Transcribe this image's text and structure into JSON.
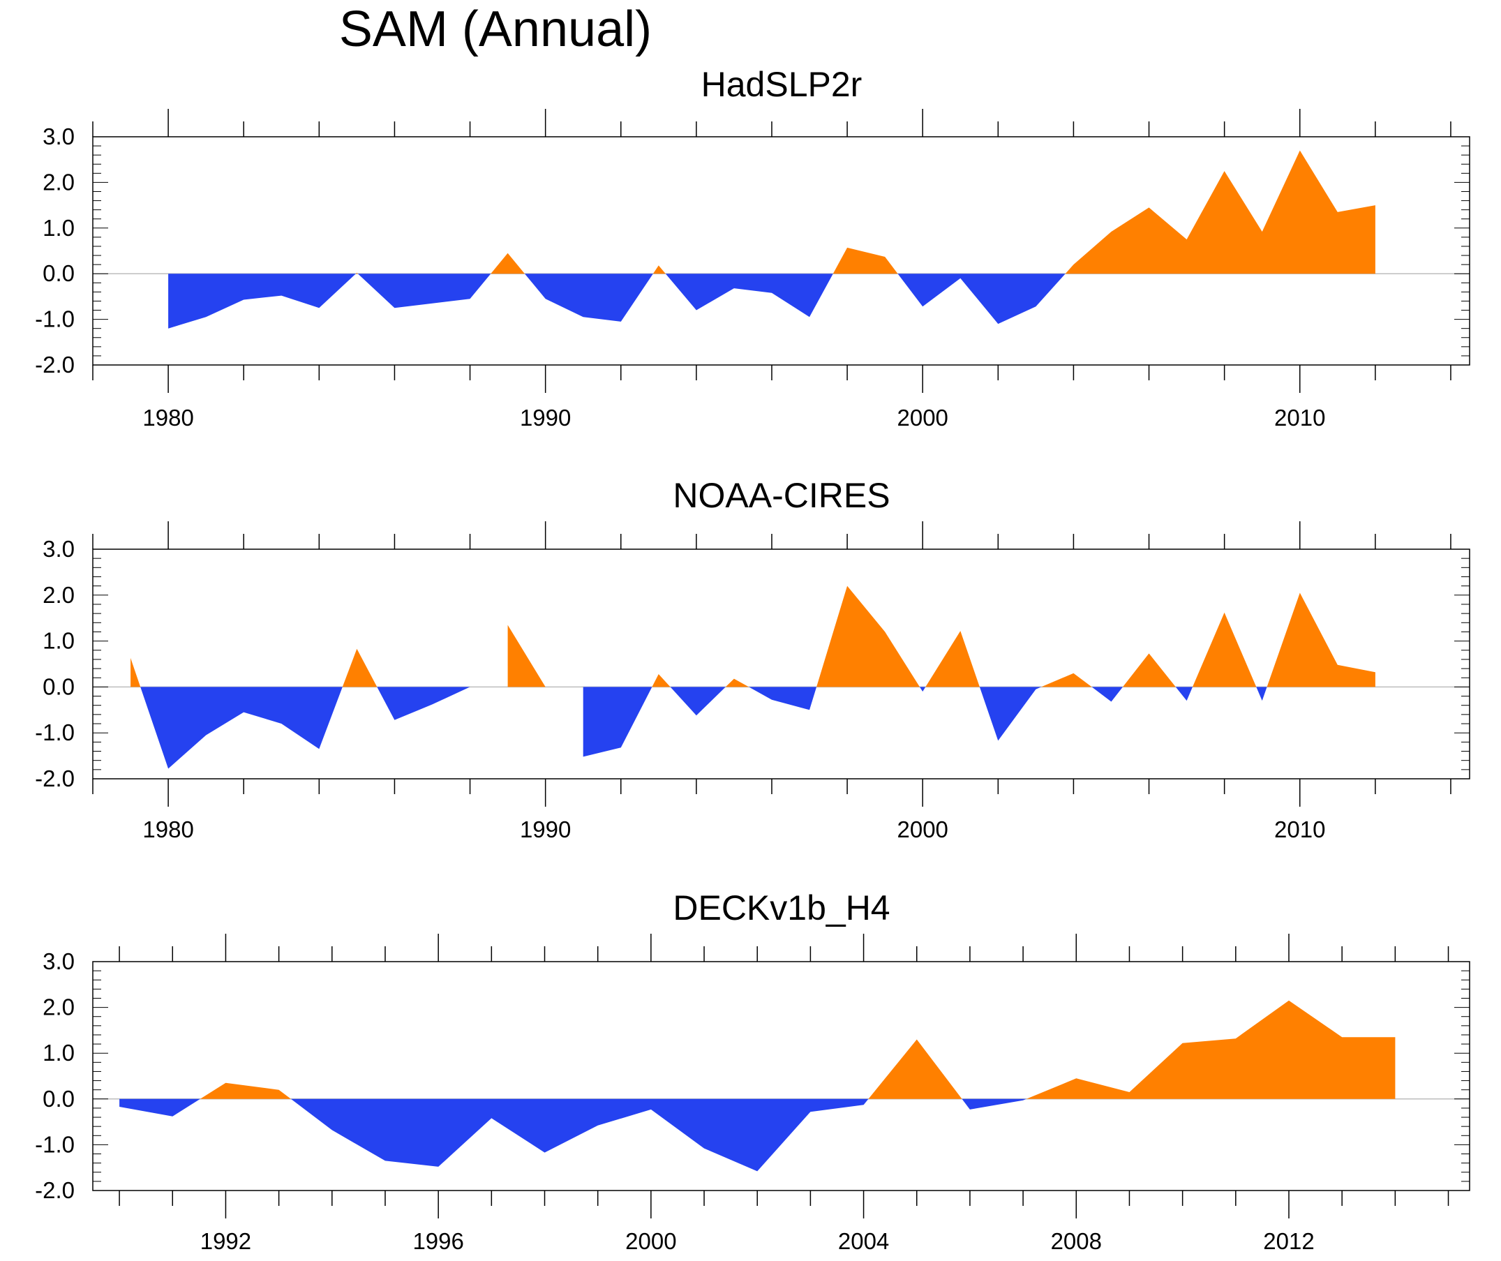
{
  "title": "SAM (Annual)",
  "colors": {
    "positive": "#FF8000",
    "negative": "#2542F0",
    "axis": "#000000",
    "zero_line": "#BDBDBD"
  },
  "chart_data": [
    {
      "type": "area",
      "title": "HadSLP2r",
      "xlabel": "",
      "ylabel": "",
      "xlim": [
        1978,
        2014.5
      ],
      "ylim": [
        -2,
        3
      ],
      "yticks": [
        -2,
        -1,
        0,
        1,
        2,
        3
      ],
      "ytick_labels": [
        "-2.0",
        "-1.0",
        "0.0",
        "1.0",
        "2.0",
        "3.0"
      ],
      "xticks_labeled": [
        1980,
        1990,
        2000,
        2010
      ],
      "xtick_labels": [
        "1980",
        "1990",
        "2000",
        "2010"
      ],
      "xminor_step": 2,
      "x": [
        1979,
        1980,
        1981,
        1982,
        1983,
        1984,
        1985,
        1986,
        1987,
        1988,
        1989,
        1990,
        1991,
        1992,
        1993,
        1994,
        1995,
        1996,
        1997,
        1998,
        1999,
        2000,
        2001,
        2002,
        2003,
        2004,
        2005,
        2006,
        2007,
        2008,
        2009,
        2010,
        2011,
        2012
      ],
      "values": [
        0.0,
        -1.2,
        -0.95,
        -0.57,
        -0.48,
        -0.75,
        0.02,
        -0.75,
        -0.65,
        -0.55,
        0.45,
        -0.55,
        -0.95,
        -1.05,
        0.18,
        -0.8,
        -0.32,
        -0.42,
        -0.95,
        0.57,
        0.37,
        -0.72,
        -0.1,
        -1.1,
        -0.72,
        0.2,
        0.92,
        1.45,
        0.75,
        2.25,
        0.92,
        2.7,
        1.35,
        1.5
      ]
    },
    {
      "type": "area",
      "title": "NOAA-CIRES",
      "xlabel": "",
      "ylabel": "",
      "xlim": [
        1978,
        2014.5
      ],
      "ylim": [
        -2,
        3
      ],
      "yticks": [
        -2,
        -1,
        0,
        1,
        2,
        3
      ],
      "ytick_labels": [
        "-2.0",
        "-1.0",
        "0.0",
        "1.0",
        "2.0",
        "3.0"
      ],
      "xticks_labeled": [
        1980,
        1990,
        2000,
        2010
      ],
      "xtick_labels": [
        "1980",
        "1990",
        "2000",
        "2010"
      ],
      "xminor_step": 2,
      "x": [
        1979,
        1980,
        1981,
        1982,
        1983,
        1984,
        1985,
        1986,
        1987,
        1988,
        1989,
        1990,
        1991,
        1992,
        1993,
        1994,
        1995,
        1996,
        1997,
        1998,
        1999,
        2000,
        2001,
        2002,
        2003,
        2004,
        2005,
        2006,
        2007,
        2008,
        2009,
        2010,
        2011,
        2012
      ],
      "values": [
        0.63,
        -1.78,
        -1.05,
        -0.55,
        -0.8,
        -1.35,
        0.83,
        -0.72,
        -0.38,
        0.0,
        1.35,
        0.0,
        -1.52,
        -1.32,
        0.28,
        -0.62,
        0.18,
        -0.28,
        -0.5,
        2.2,
        1.2,
        -0.1,
        1.22,
        -1.17,
        -0.05,
        0.3,
        -0.32,
        0.73,
        -0.3,
        1.62,
        -0.3,
        2.05,
        0.48,
        0.32
      ]
    },
    {
      "type": "area",
      "title": "DECKv1b_H4",
      "xlabel": "",
      "ylabel": "",
      "xlim": [
        1989.5,
        2015.4
      ],
      "ylim": [
        -2,
        3
      ],
      "yticks": [
        -2,
        -1,
        0,
        1,
        2,
        3
      ],
      "ytick_labels": [
        "-2.0",
        "-1.0",
        "0.0",
        "1.0",
        "2.0",
        "3.0"
      ],
      "xticks_labeled": [
        1992,
        1996,
        2000,
        2004,
        2008,
        2012
      ],
      "xtick_labels": [
        "1992",
        "1996",
        "2000",
        "2004",
        "2008",
        "2012"
      ],
      "xminor_step": 1,
      "x": [
        1990,
        1991,
        1992,
        1993,
        1994,
        1995,
        1996,
        1997,
        1998,
        1999,
        2000,
        2001,
        2002,
        2003,
        2004,
        2005,
        2006,
        2007,
        2008,
        2009,
        2010,
        2011,
        2012,
        2013,
        2014
      ],
      "values": [
        -0.17,
        -0.38,
        0.35,
        0.2,
        -0.68,
        -1.35,
        -1.48,
        -0.42,
        -1.17,
        -0.58,
        -0.23,
        -1.08,
        -1.58,
        -0.28,
        -0.13,
        1.3,
        -0.23,
        -0.03,
        0.45,
        0.15,
        1.22,
        1.32,
        2.15,
        1.35,
        1.35
      ]
    }
  ]
}
